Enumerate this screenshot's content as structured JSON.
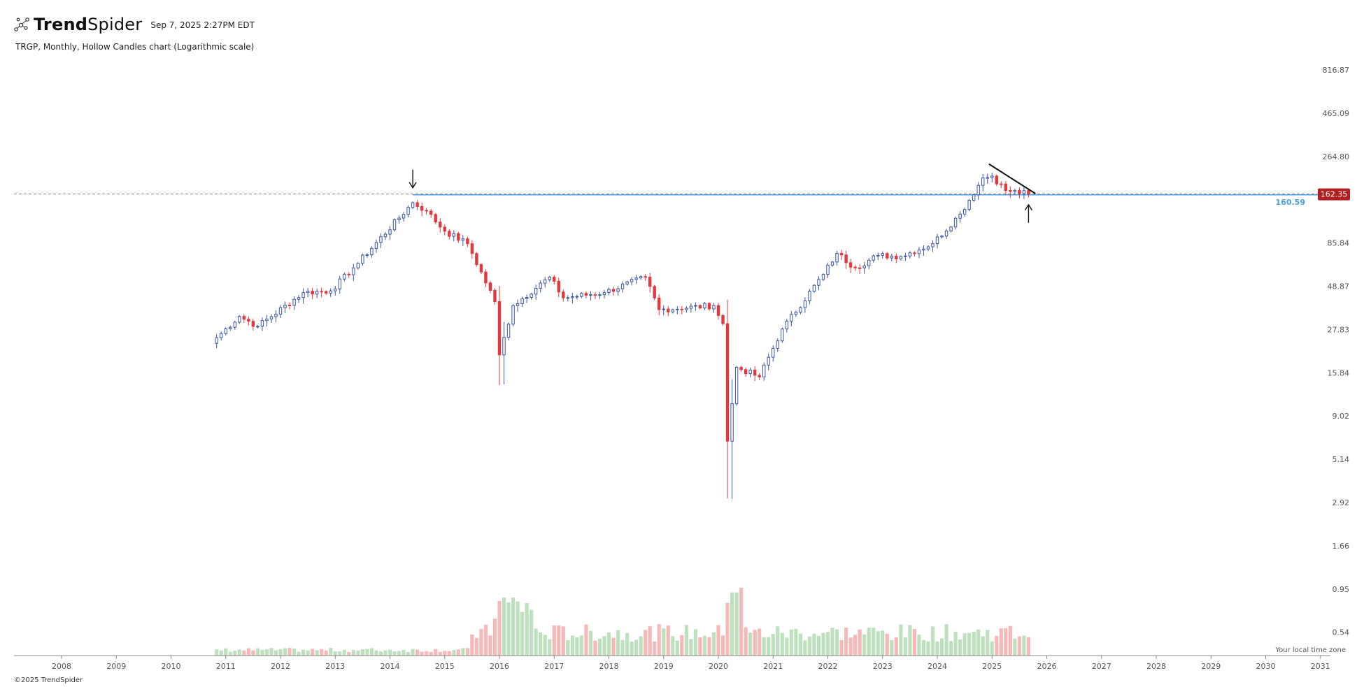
{
  "header": {
    "brand_bold": "Trend",
    "brand_light": "Spider",
    "timestamp": "Sep 7, 2025 2:27PM EDT",
    "subtitle": "TRGP, Monthly, Hollow Candles chart (Logarithmic scale)"
  },
  "footer": {
    "copyright": "©2025 TrendSpider"
  },
  "timezone_label": "Your local time zone",
  "colors": {
    "up": "#3d55a8",
    "down": "#e0393e",
    "volume_up": "#bfe0be",
    "volume_down": "#f6b9b9",
    "level_line": "#4a9ee8",
    "price_badge": "#b21f1f",
    "grid_axis": "#999999"
  },
  "chart_data": {
    "type": "candlestick",
    "symbol": "TRGP",
    "interval": "Monthly",
    "scale": "logarithmic",
    "y_tick_labels": [
      "816.87",
      "465.09",
      "264.80",
      "162.35",
      "85.84",
      "48.87",
      "27.83",
      "15.84",
      "9.02",
      "5.14",
      "2.92",
      "1.66",
      "0.95",
      "0.54"
    ],
    "x_tick_labels": [
      "2008",
      "2009",
      "2010",
      "2011",
      "2012",
      "2013",
      "2014",
      "2015",
      "2016",
      "2017",
      "2018",
      "2019",
      "2020",
      "2021",
      "2022",
      "2023",
      "2024",
      "2025",
      "2026",
      "2027",
      "2028",
      "2029",
      "2030",
      "2031"
    ],
    "current_price": "162.35",
    "horizontal_level": "160.59",
    "annotations": [
      {
        "type": "arrow-down",
        "date": "2014-06"
      },
      {
        "type": "arrow-up",
        "date": "2025-09"
      },
      {
        "type": "trendline",
        "from": {
          "date": "2024-12",
          "value": 240
        },
        "to": {
          "date": "2025-09",
          "value": 163
        }
      }
    ],
    "anchors": [
      {
        "date": "2010-11",
        "close": 25
      },
      {
        "date": "2011-04",
        "close": 33
      },
      {
        "date": "2011-08",
        "close": 29
      },
      {
        "date": "2012-06",
        "close": 45
      },
      {
        "date": "2012-12",
        "close": 46
      },
      {
        "date": "2013-05",
        "close": 62
      },
      {
        "date": "2014-06",
        "close": 145
      },
      {
        "date": "2014-09",
        "close": 130
      },
      {
        "date": "2015-01",
        "close": 100
      },
      {
        "date": "2015-06",
        "close": 85
      },
      {
        "date": "2015-12",
        "close": 40
      },
      {
        "date": "2016-01",
        "close": 20
      },
      {
        "date": "2016-04",
        "close": 38
      },
      {
        "date": "2016-12",
        "close": 55
      },
      {
        "date": "2017-03",
        "close": 42
      },
      {
        "date": "2017-12",
        "close": 45
      },
      {
        "date": "2018-09",
        "close": 55
      },
      {
        "date": "2018-12",
        "close": 36
      },
      {
        "date": "2019-12",
        "close": 38
      },
      {
        "date": "2020-02",
        "close": 30
      },
      {
        "date": "2020-03",
        "close": 6.5
      },
      {
        "date": "2020-05",
        "close": 17
      },
      {
        "date": "2020-10",
        "close": 15
      },
      {
        "date": "2021-03",
        "close": 28
      },
      {
        "date": "2021-12",
        "close": 57
      },
      {
        "date": "2022-03",
        "close": 75
      },
      {
        "date": "2022-07",
        "close": 62
      },
      {
        "date": "2022-12",
        "close": 73
      },
      {
        "date": "2023-05",
        "close": 72
      },
      {
        "date": "2023-12",
        "close": 85
      },
      {
        "date": "2024-06",
        "close": 125
      },
      {
        "date": "2024-11",
        "close": 200
      },
      {
        "date": "2025-01",
        "close": 205
      },
      {
        "date": "2025-04",
        "close": 170
      },
      {
        "date": "2025-09",
        "close": 162.35
      }
    ]
  }
}
